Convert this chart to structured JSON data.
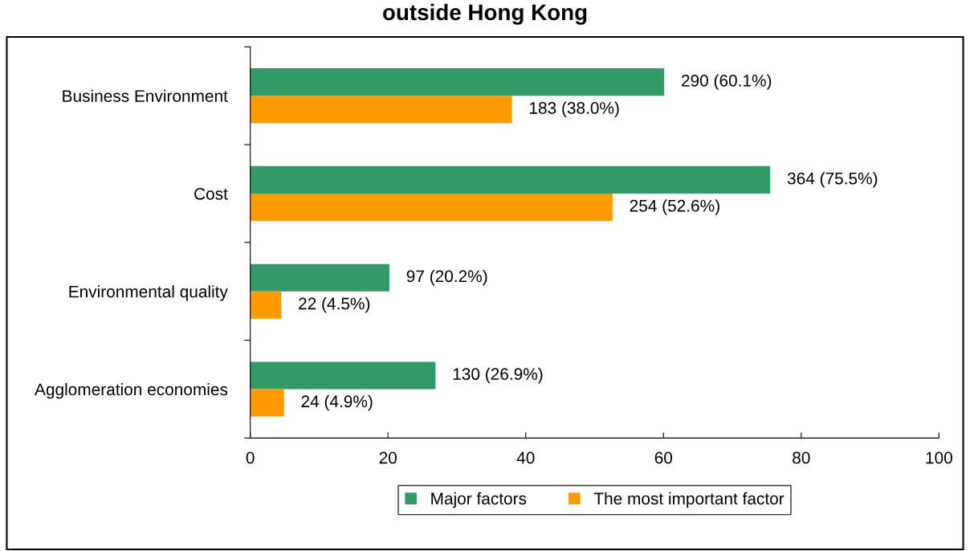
{
  "chart_data": {
    "type": "bar",
    "orientation": "horizontal",
    "title": "outside Hong Kong",
    "categories": [
      "Business Environment",
      "Cost",
      "Environmental quality",
      "Agglomeration economies"
    ],
    "series": [
      {
        "name": "Major factors",
        "color": "#339966",
        "values": [
          60.1,
          75.5,
          20.2,
          26.9
        ],
        "value_labels": [
          "290 (60.1%)",
          "364 (75.5%)",
          "97 (20.2%)",
          "130 (26.9%)"
        ]
      },
      {
        "name": "The most important factor",
        "color": "#ff9900",
        "values": [
          38.0,
          52.6,
          4.5,
          4.9
        ],
        "value_labels": [
          "183 (38.0%)",
          "254 (52.6%)",
          "22 (4.5%)",
          "24 (4.9%)"
        ]
      }
    ],
    "xlim": [
      0,
      100
    ],
    "xticks": [
      0,
      20,
      40,
      60,
      80,
      100
    ],
    "grid": false,
    "legend": "bottom"
  }
}
